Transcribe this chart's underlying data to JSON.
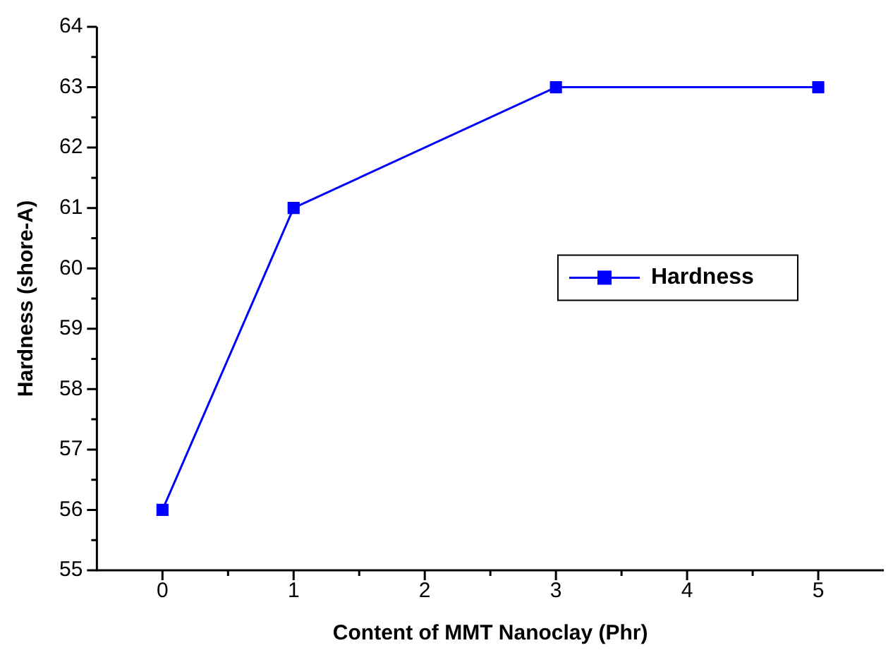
{
  "chart_data": {
    "type": "line",
    "xlabel": "Content of MMT Nanoclay (Phr)",
    "ylabel": "Hardness (shore-A)",
    "x": [
      0,
      1,
      3,
      5
    ],
    "series": [
      {
        "name": "Hardness",
        "color": "#0000ff",
        "values": [
          56,
          61,
          63,
          63
        ]
      }
    ],
    "xlim": [
      -0.5,
      5.5
    ],
    "xticks": [
      0,
      1,
      2,
      3,
      4,
      5
    ],
    "ylim": [
      55,
      64
    ],
    "yticks": [
      55,
      56,
      57,
      58,
      59,
      60,
      61,
      62,
      63,
      64
    ],
    "grid": false,
    "legend": "right",
    "marker": "square",
    "line_style": "solid"
  }
}
